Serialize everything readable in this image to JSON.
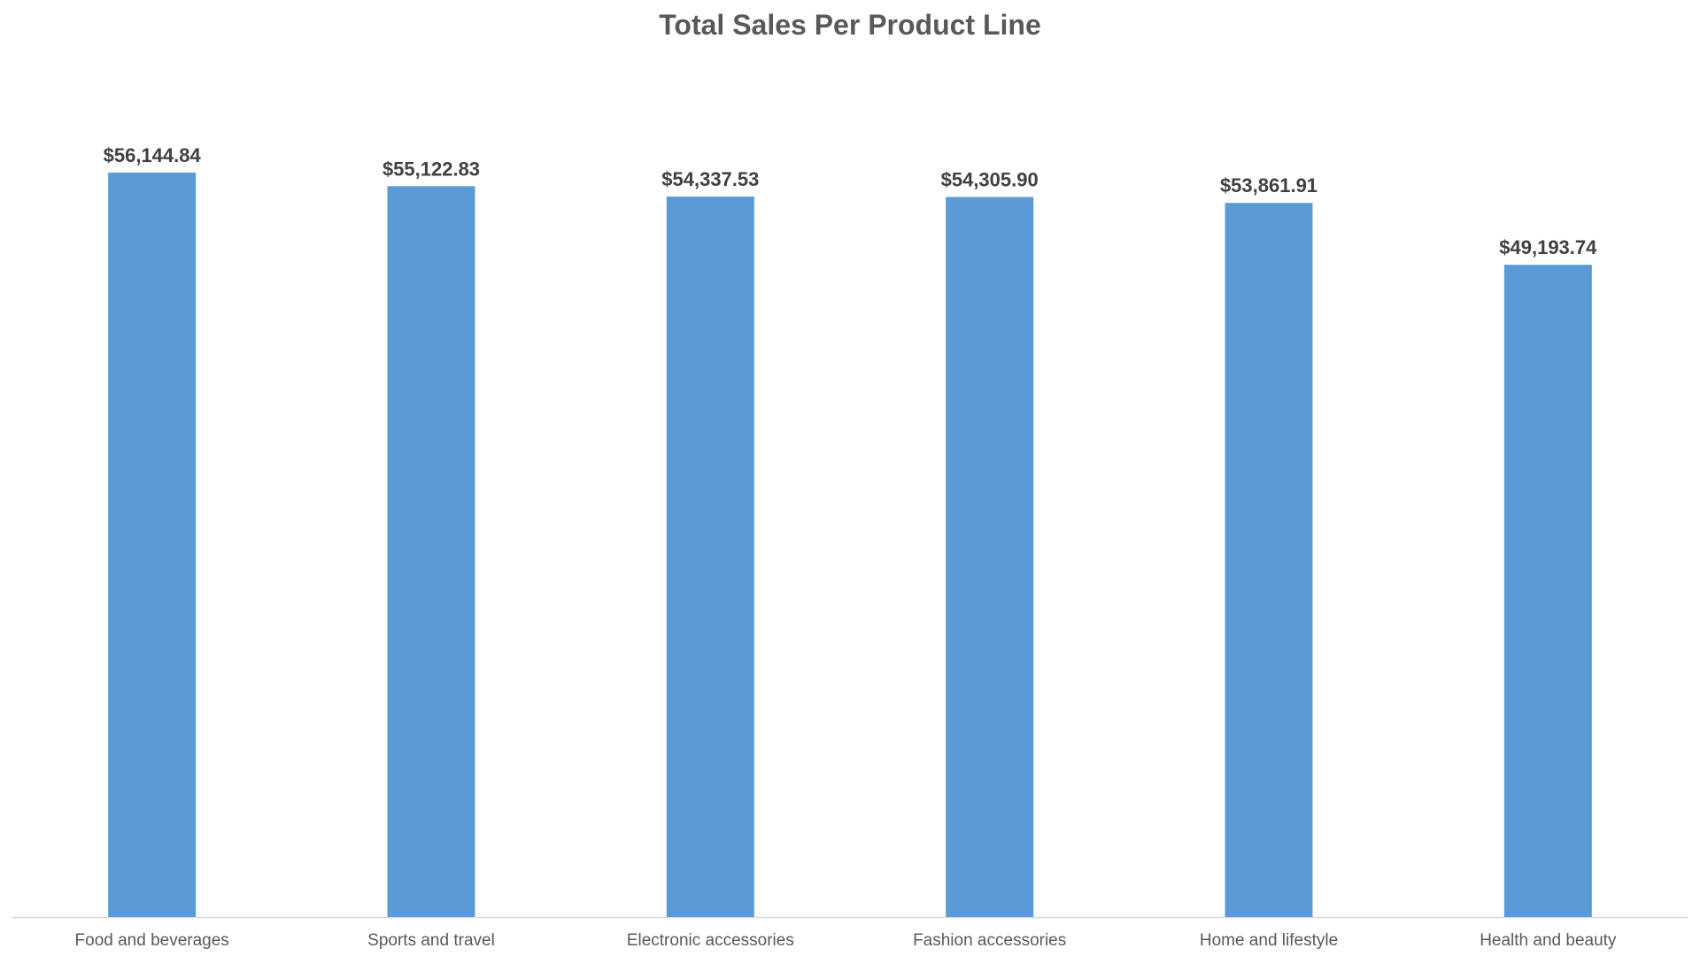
{
  "chart_data": {
    "type": "bar",
    "title": "Total Sales Per Product Line",
    "xlabel": "",
    "ylabel": "",
    "categories": [
      "Food and beverages",
      "Sports and travel",
      "Electronic accessories",
      "Fashion accessories",
      "Home and lifestyle",
      "Health and beauty"
    ],
    "values": [
      56144.84,
      55122.83,
      54337.53,
      54305.9,
      53861.91,
      49193.74
    ],
    "data_labels": [
      "$56,144.84",
      "$55,122.83",
      "$54,337.53",
      "$54,305.90",
      "$53,861.91",
      "$49,193.74"
    ],
    "ylim": [
      0,
      56144.84
    ],
    "grid": false,
    "legend": "none",
    "bar_color": "#5B9BD5",
    "axis_color": "#D9D9D9"
  }
}
